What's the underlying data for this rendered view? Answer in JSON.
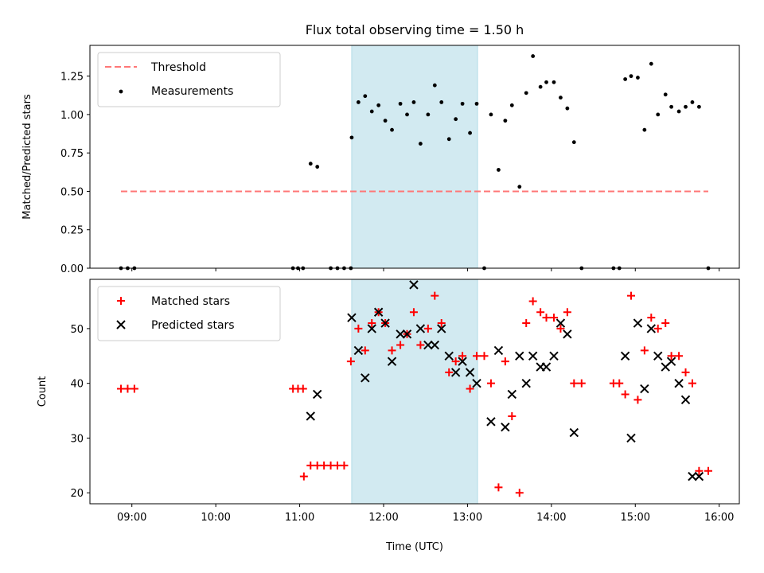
{
  "chart_data": {
    "title": "Flux total observing time = 1.50 h",
    "xlabel": "Time (UTC)",
    "x_units": "hours since 00:00 UTC",
    "xlim": [
      8.5,
      16.24
    ],
    "x_ticks": [
      {
        "value": 9,
        "label": "09:00"
      },
      {
        "value": 10,
        "label": "10:00"
      },
      {
        "value": 11,
        "label": "11:00"
      },
      {
        "value": 12,
        "label": "12:00"
      },
      {
        "value": 13,
        "label": "13:00"
      },
      {
        "value": 14,
        "label": "14:00"
      },
      {
        "value": 15,
        "label": "15:00"
      },
      {
        "value": 16,
        "label": "16:00"
      }
    ],
    "highlight_span": {
      "x_start": 11.62,
      "x_end": 13.12,
      "color": "#add8e6"
    },
    "panels": [
      {
        "type": "scatter",
        "ylabel": "Matched/Predicted stars",
        "ylim": [
          0,
          1.45
        ],
        "y_ticks": [
          {
            "value": 0,
            "label": "0.00"
          },
          {
            "value": 0.25,
            "label": "0.25"
          },
          {
            "value": 0.5,
            "label": "0.50"
          },
          {
            "value": 0.75,
            "label": "0.75"
          },
          {
            "value": 1.0,
            "label": "1.00"
          },
          {
            "value": 1.25,
            "label": "1.25"
          }
        ],
        "legend_position": "top-left",
        "threshold": {
          "name": "Threshold",
          "value": 0.5,
          "x_start": 8.87,
          "x_end": 15.87,
          "color": "#ff7777"
        },
        "series": [
          {
            "name": "Measurements",
            "marker": "dot",
            "color": "#000000",
            "x": [
              8.87,
              8.95,
              9.03,
              10.92,
              10.98,
              11.04,
              11.13,
              11.21,
              11.37,
              11.45,
              11.53,
              11.61,
              11.62,
              11.7,
              11.78,
              11.86,
              11.94,
              12.02,
              12.1,
              12.2,
              12.28,
              12.36,
              12.44,
              12.53,
              12.61,
              12.69,
              12.78,
              12.86,
              12.94,
              13.03,
              13.11,
              13.2,
              13.28,
              13.37,
              13.45,
              13.53,
              13.62,
              13.7,
              13.78,
              13.87,
              13.94,
              14.03,
              14.11,
              14.19,
              14.27,
              14.36,
              14.74,
              14.81,
              14.88,
              14.95,
              15.03,
              15.11,
              15.19,
              15.27,
              15.36,
              15.43,
              15.52,
              15.6,
              15.68,
              15.76,
              15.87
            ],
            "y": [
              0,
              0,
              0,
              0,
              0,
              0,
              0.68,
              0.66,
              0,
              0,
              0,
              0,
              0.85,
              1.08,
              1.12,
              1.02,
              1.06,
              0.96,
              0.9,
              1.07,
              1.0,
              1.08,
              0.81,
              1.0,
              1.19,
              1.08,
              0.84,
              0.97,
              1.07,
              0.88,
              1.07,
              0,
              1.0,
              0.64,
              0.96,
              1.06,
              0.53,
              1.14,
              1.38,
              1.18,
              1.21,
              1.21,
              1.11,
              1.04,
              0.82,
              0,
              0,
              0,
              1.23,
              1.25,
              1.24,
              0.9,
              1.33,
              1.0,
              1.13,
              1.05,
              1.02,
              1.05,
              1.08,
              1.05,
              0
            ]
          }
        ]
      },
      {
        "type": "scatter",
        "ylabel": "Count",
        "ylim": [
          18,
          59
        ],
        "y_ticks": [
          {
            "value": 20,
            "label": "20"
          },
          {
            "value": 30,
            "label": "30"
          },
          {
            "value": 40,
            "label": "40"
          },
          {
            "value": 50,
            "label": "50"
          }
        ],
        "legend_position": "top-left",
        "series": [
          {
            "name": "Matched stars",
            "marker": "plus",
            "color": "#ff0000",
            "x": [
              8.87,
              8.95,
              9.03,
              10.92,
              10.98,
              11.04,
              11.05,
              11.13,
              11.21,
              11.29,
              11.37,
              11.45,
              11.53,
              11.61,
              11.7,
              11.78,
              11.86,
              11.94,
              12.02,
              12.1,
              12.2,
              12.28,
              12.36,
              12.44,
              12.53,
              12.61,
              12.69,
              12.78,
              12.86,
              12.94,
              13.03,
              13.11,
              13.2,
              13.28,
              13.37,
              13.45,
              13.53,
              13.62,
              13.7,
              13.78,
              13.87,
              13.94,
              14.03,
              14.11,
              14.19,
              14.27,
              14.36,
              14.74,
              14.81,
              14.88,
              14.95,
              15.03,
              15.11,
              15.19,
              15.27,
              15.36,
              15.43,
              15.52,
              15.6,
              15.68,
              15.76,
              15.87
            ],
            "y": [
              39,
              39,
              39,
              39,
              39,
              39,
              23,
              25,
              25,
              25,
              25,
              25,
              25,
              44,
              50,
              46,
              51,
              53,
              51,
              46,
              47,
              49,
              53,
              47,
              50,
              56,
              51,
              42,
              44,
              45,
              39,
              45,
              45,
              40,
              21,
              44,
              34,
              20,
              51,
              55,
              53,
              52,
              52,
              50,
              53,
              40,
              40,
              40,
              40,
              38,
              56,
              37,
              46,
              52,
              50,
              51,
              45,
              45,
              42,
              40,
              24,
              24
            ]
          },
          {
            "name": "Predicted stars",
            "marker": "x",
            "color": "#000000",
            "x": [
              11.13,
              11.21,
              11.62,
              11.7,
              11.78,
              11.86,
              11.94,
              12.02,
              12.1,
              12.2,
              12.28,
              12.36,
              12.44,
              12.53,
              12.61,
              12.69,
              12.78,
              12.86,
              12.94,
              13.03,
              13.11,
              13.28,
              13.37,
              13.45,
              13.53,
              13.62,
              13.7,
              13.78,
              13.87,
              13.94,
              14.03,
              14.11,
              14.19,
              14.27,
              14.88,
              14.95,
              15.03,
              15.11,
              15.19,
              15.27,
              15.36,
              15.43,
              15.52,
              15.6,
              15.68,
              15.76
            ],
            "y": [
              34,
              38,
              52,
              46,
              41,
              50,
              53,
              51,
              44,
              49,
              49,
              58,
              50,
              47,
              47,
              50,
              45,
              42,
              44,
              42,
              40,
              33,
              46,
              32,
              38,
              45,
              40,
              45,
              43,
              43,
              45,
              51,
              49,
              31,
              45,
              30,
              51,
              39,
              50,
              45,
              43,
              44,
              40,
              37,
              23,
              23
            ]
          }
        ]
      }
    ]
  }
}
